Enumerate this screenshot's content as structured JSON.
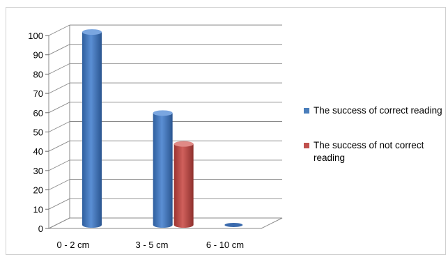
{
  "chart_data": {
    "type": "bar",
    "categories": [
      "0 - 2 cm",
      "3 - 5 cm",
      "6 - 10 cm"
    ],
    "series": [
      {
        "name": "The success of correct reading",
        "values": [
          100,
          58,
          0
        ],
        "color": "#4a7ebb"
      },
      {
        "name": "The success of not correct reading",
        "values": [
          0,
          42,
          0
        ],
        "color": "#c0504d"
      }
    ],
    "title": "",
    "xlabel": "",
    "ylabel": "",
    "ylim": [
      0,
      100
    ],
    "yticks": [
      "0",
      "10",
      "20",
      "30",
      "40",
      "50",
      "60",
      "70",
      "80",
      "90",
      "100"
    ],
    "grid": true,
    "legend": "right"
  }
}
